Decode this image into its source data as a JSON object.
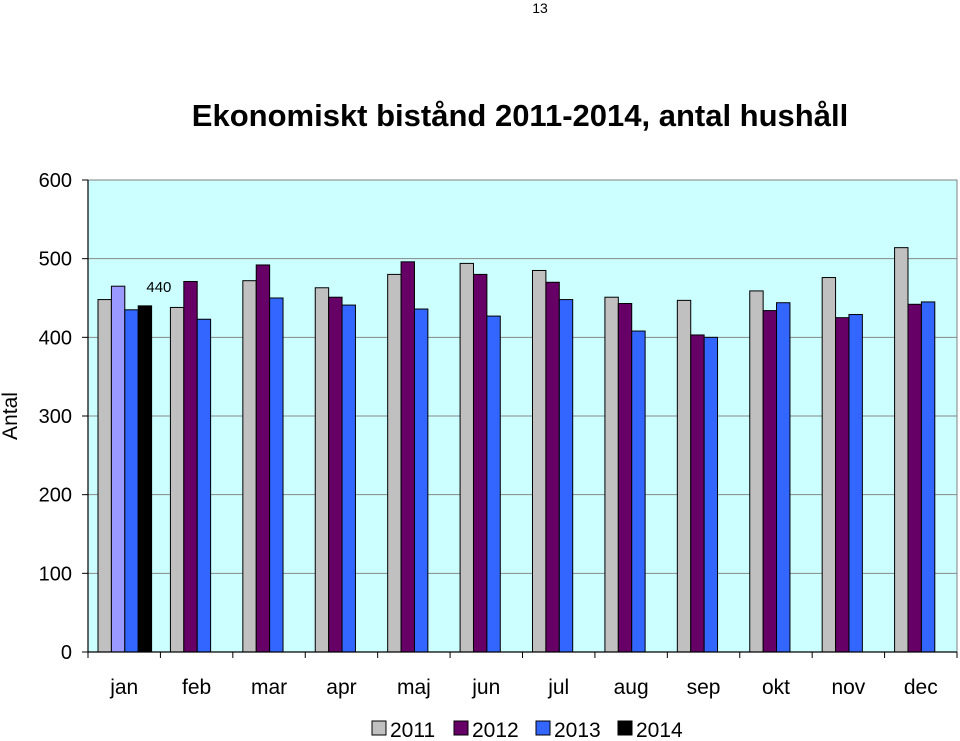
{
  "page": {
    "number": "13"
  },
  "chart_data": {
    "type": "bar",
    "title": "Ekonomiskt bistånd 2011-2014, antal hushåll",
    "ylabel": "Antal",
    "xlabel": "",
    "ylim": [
      0,
      600
    ],
    "yticks": [
      0,
      100,
      200,
      300,
      400,
      500,
      600
    ],
    "grid": true,
    "legend_position": "bottom",
    "categories": [
      "jan",
      "feb",
      "mar",
      "apr",
      "maj",
      "jun",
      "jul",
      "aug",
      "sep",
      "okt",
      "nov",
      "dec"
    ],
    "series": [
      {
        "name": "2011",
        "color": "#c0c0c0",
        "values": [
          448,
          438,
          472,
          463,
          480,
          494,
          485,
          451,
          447,
          459,
          476,
          514
        ]
      },
      {
        "name": "2012",
        "color": "#660066",
        "values": [
          465,
          471,
          492,
          451,
          496,
          480,
          470,
          443,
          403,
          434,
          425,
          442
        ]
      },
      {
        "name": "2013",
        "color": "#3366ff",
        "values": [
          435,
          423,
          450,
          441,
          436,
          427,
          448,
          408,
          400,
          444,
          429,
          445
        ]
      },
      {
        "name": "2014",
        "color": "#000000",
        "values": [
          440,
          null,
          null,
          null,
          null,
          null,
          null,
          null,
          null,
          null,
          null,
          null
        ]
      }
    ],
    "highlighted_bar": {
      "category": "jan",
      "series": "2012",
      "color": "#9999ff"
    },
    "annotations": [
      {
        "category": "jan",
        "series": "2014",
        "text": "440"
      }
    ],
    "plot_background": "#ccffff"
  }
}
